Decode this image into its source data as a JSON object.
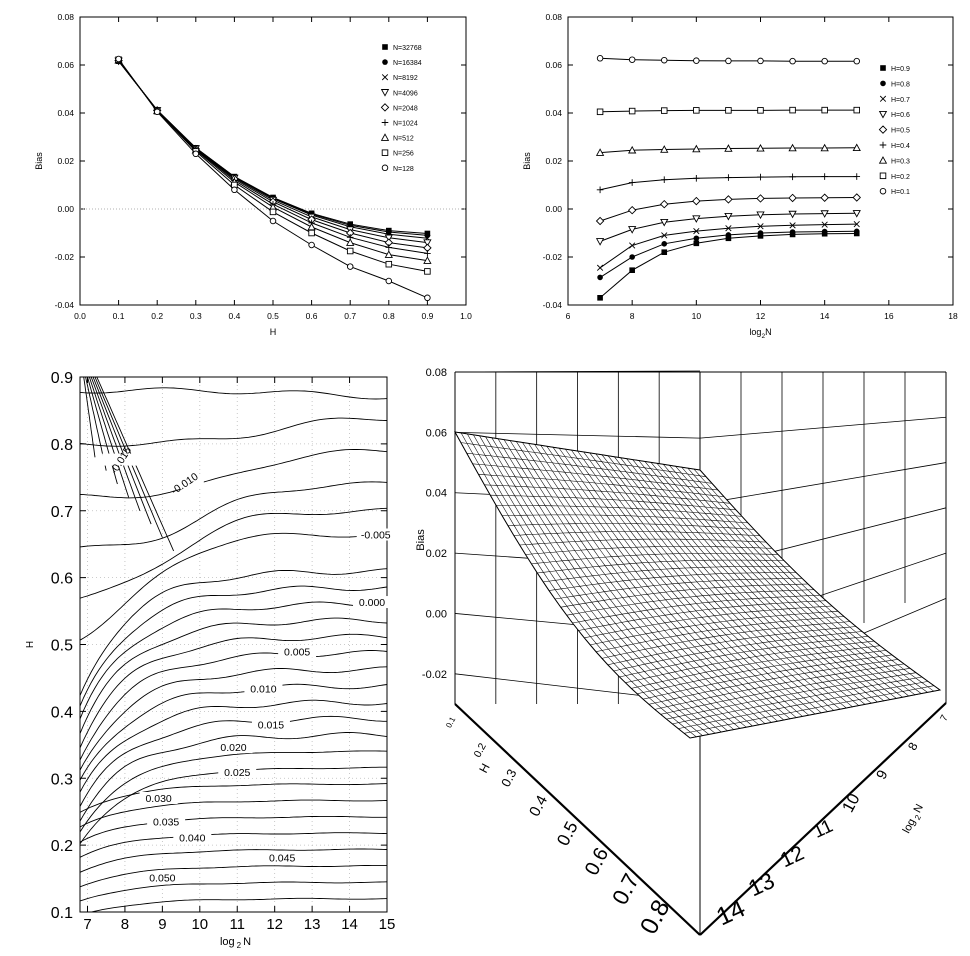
{
  "chart_data": [
    {
      "type": "line",
      "xlabel": "H",
      "ylabel": "Bias",
      "xlim": [
        0.0,
        1.0
      ],
      "ylim": [
        -0.04,
        0.08
      ],
      "xticks": [
        "0.0",
        "0.1",
        "0.2",
        "0.3",
        "0.4",
        "0.5",
        "0.6",
        "0.7",
        "0.8",
        "0.9",
        "1.0"
      ],
      "yticks": [
        "-0.04",
        "-0.02",
        "0.00",
        "0.02",
        "0.04",
        "0.06",
        "0.08"
      ],
      "legend_position": "top-right",
      "reference_line": 0.0,
      "x": [
        0.1,
        0.2,
        0.3,
        0.4,
        0.5,
        0.6,
        0.7,
        0.8,
        0.9
      ],
      "series": [
        {
          "name": "N=32768",
          "marker": "filled-square",
          "values": [
            0.0616,
            0.0412,
            0.0255,
            0.0135,
            0.0048,
            -0.0018,
            -0.0063,
            -0.009,
            -0.0102
          ]
        },
        {
          "name": "N=16384",
          "marker": "filled-circle",
          "values": [
            0.0616,
            0.0412,
            0.0254,
            0.0134,
            0.0046,
            -0.0021,
            -0.0068,
            -0.0096,
            -0.011
          ]
        },
        {
          "name": "N=8192",
          "marker": "cross",
          "values": [
            0.0617,
            0.0411,
            0.0253,
            0.0132,
            0.0043,
            -0.0025,
            -0.0074,
            -0.0105,
            -0.0122
          ]
        },
        {
          "name": "N=4096",
          "marker": "triangle-down",
          "values": [
            0.0617,
            0.0411,
            0.0252,
            0.0129,
            0.0037,
            -0.0033,
            -0.0086,
            -0.012,
            -0.014
          ]
        },
        {
          "name": "N=2048",
          "marker": "diamond",
          "values": [
            0.0618,
            0.0411,
            0.025,
            0.0125,
            0.003,
            -0.0044,
            -0.01,
            -0.014,
            -0.0162
          ]
        },
        {
          "name": "N=1024",
          "marker": "plus",
          "values": [
            0.0619,
            0.041,
            0.0248,
            0.0119,
            0.002,
            -0.0058,
            -0.0118,
            -0.016,
            -0.0185
          ]
        },
        {
          "name": "N=512",
          "marker": "triangle-up",
          "values": [
            0.062,
            0.0409,
            0.0245,
            0.0112,
            0.0008,
            -0.0075,
            -0.014,
            -0.019,
            -0.0215
          ]
        },
        {
          "name": "N=256",
          "marker": "square",
          "values": [
            0.0622,
            0.0408,
            0.024,
            0.01,
            -0.0012,
            -0.01,
            -0.0175,
            -0.023,
            -0.026
          ]
        },
        {
          "name": "N=128",
          "marker": "circle",
          "values": [
            0.0625,
            0.0405,
            0.023,
            0.008,
            -0.005,
            -0.015,
            -0.024,
            -0.03,
            -0.037
          ]
        }
      ]
    },
    {
      "type": "line",
      "xlabel": "log",
      "xlabel_sub": "2",
      "xlabel_tail": "N",
      "ylabel": "Bias",
      "xlim": [
        6,
        18
      ],
      "ylim": [
        -0.04,
        0.08
      ],
      "xticks": [
        "6",
        "8",
        "10",
        "12",
        "14",
        "16",
        "18"
      ],
      "yticks": [
        "-0.04",
        "-0.02",
        "0.00",
        "0.02",
        "0.04",
        "0.06",
        "0.08"
      ],
      "legend_position": "right",
      "x": [
        7,
        8,
        9,
        10,
        11,
        12,
        13,
        14,
        15
      ],
      "series": [
        {
          "name": "H=0.9",
          "marker": "filled-square",
          "values": [
            -0.037,
            -0.0255,
            -0.018,
            -0.0143,
            -0.0122,
            -0.0112,
            -0.0106,
            -0.0103,
            -0.0102
          ]
        },
        {
          "name": "H=0.8",
          "marker": "filled-circle",
          "values": [
            -0.0285,
            -0.02,
            -0.0145,
            -0.0122,
            -0.0108,
            -0.01,
            -0.0096,
            -0.0094,
            -0.0093
          ]
        },
        {
          "name": "H=0.7",
          "marker": "cross",
          "values": [
            -0.0245,
            -0.0152,
            -0.011,
            -0.0092,
            -0.008,
            -0.0072,
            -0.0068,
            -0.0065,
            -0.0063
          ]
        },
        {
          "name": "H=0.6",
          "marker": "triangle-down",
          "values": [
            -0.0135,
            -0.0085,
            -0.0055,
            -0.004,
            -0.003,
            -0.0024,
            -0.0021,
            -0.0019,
            -0.0018
          ]
        },
        {
          "name": "H=0.5",
          "marker": "diamond",
          "values": [
            -0.005,
            -0.0005,
            0.002,
            0.0033,
            0.004,
            0.0044,
            0.0046,
            0.0047,
            0.0048
          ]
        },
        {
          "name": "H=0.4",
          "marker": "plus",
          "values": [
            0.008,
            0.011,
            0.0122,
            0.0128,
            0.0131,
            0.0133,
            0.0134,
            0.0135,
            0.0135
          ]
        },
        {
          "name": "H=0.3",
          "marker": "triangle-up",
          "values": [
            0.0235,
            0.0245,
            0.0248,
            0.025,
            0.0252,
            0.0253,
            0.0254,
            0.0254,
            0.0255
          ]
        },
        {
          "name": "H=0.2",
          "marker": "square",
          "values": [
            0.0405,
            0.0408,
            0.041,
            0.0411,
            0.0411,
            0.0411,
            0.0412,
            0.0412,
            0.0412
          ]
        },
        {
          "name": "H=0.1",
          "marker": "circle",
          "values": [
            0.0628,
            0.0622,
            0.062,
            0.0618,
            0.0617,
            0.0617,
            0.0616,
            0.0616,
            0.0616
          ]
        }
      ]
    },
    {
      "type": "contour",
      "xlabel": "log",
      "xlabel_sub": "2",
      "xlabel_tail": "N",
      "ylabel": "H",
      "xlim": [
        6.8,
        15
      ],
      "ylim": [
        0.1,
        0.9
      ],
      "xticks": [
        "7",
        "8",
        "9",
        "10",
        "11",
        "12",
        "13",
        "14",
        "15"
      ],
      "yticks": [
        "0.1",
        "0.2",
        "0.3",
        "0.4",
        "0.5",
        "0.6",
        "0.7",
        "0.8",
        "0.9"
      ],
      "grid": "dotted",
      "contour_labels": [
        {
          "text": "-0.015",
          "x": 7.9,
          "y": 0.775
        },
        {
          "text": "-0.010",
          "x": 9.6,
          "y": 0.74
        },
        {
          "text": "-0.005",
          "x": 14.7,
          "y": 0.663
        },
        {
          "text": "0.000",
          "x": 14.6,
          "y": 0.562
        },
        {
          "text": "0.005",
          "x": 12.6,
          "y": 0.488
        },
        {
          "text": "0.010",
          "x": 11.7,
          "y": 0.433
        },
        {
          "text": "0.015",
          "x": 11.9,
          "y": 0.379
        },
        {
          "text": "0.020",
          "x": 10.9,
          "y": 0.345
        },
        {
          "text": "0.025",
          "x": 11.0,
          "y": 0.308
        },
        {
          "text": "0.030",
          "x": 8.9,
          "y": 0.269
        },
        {
          "text": "0.035",
          "x": 9.1,
          "y": 0.234
        },
        {
          "text": "0.040",
          "x": 9.8,
          "y": 0.21
        },
        {
          "text": "0.045",
          "x": 12.2,
          "y": 0.18
        },
        {
          "text": "0.050",
          "x": 9.0,
          "y": 0.15
        }
      ]
    },
    {
      "type": "surface",
      "zlabel": "Bias",
      "x_axis_label": "H",
      "y_axis_label": "log",
      "y_axis_label_sub": "2",
      "y_axis_label_tail": "N",
      "zticks": [
        "-0.02",
        "0.00",
        "0.02",
        "0.04",
        "0.06",
        "0.08"
      ],
      "h_ticks": [
        "0.1",
        "0.2",
        "0.3",
        "0.4",
        "0.5",
        "0.6",
        "0.7",
        "0.8"
      ],
      "n_ticks": [
        "7",
        "8",
        "9",
        "10",
        "11",
        "12",
        "13",
        "14"
      ],
      "zlim": [
        -0.03,
        0.08
      ]
    }
  ]
}
